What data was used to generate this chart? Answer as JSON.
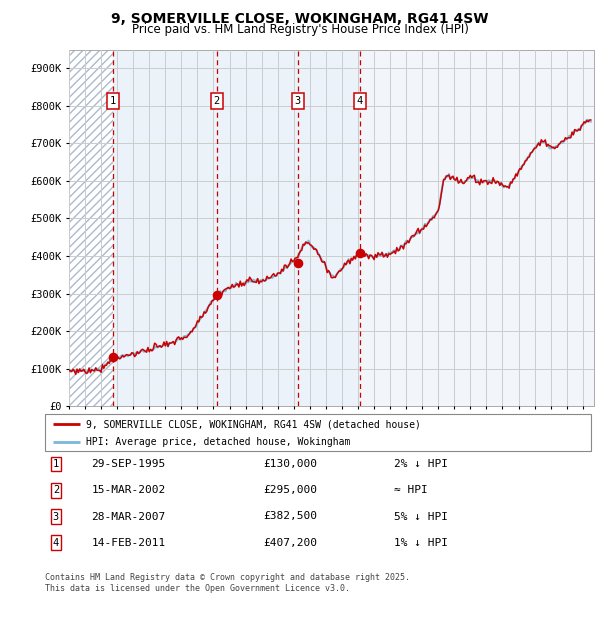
{
  "title": "9, SOMERVILLE CLOSE, WOKINGHAM, RG41 4SW",
  "subtitle": "Price paid vs. HM Land Registry's House Price Index (HPI)",
  "ylabel_ticks": [
    "£0",
    "£100K",
    "£200K",
    "£300K",
    "£400K",
    "£500K",
    "£600K",
    "£700K",
    "£800K",
    "£900K"
  ],
  "ytick_values": [
    0,
    100000,
    200000,
    300000,
    400000,
    500000,
    600000,
    700000,
    800000,
    900000
  ],
  "ylim": [
    0,
    950000
  ],
  "xlim_start": 1993.0,
  "xlim_end": 2025.7,
  "sale_dates": [
    1995.75,
    2002.21,
    2007.24,
    2011.12
  ],
  "sale_prices": [
    130000,
    295000,
    382500,
    407200
  ],
  "sale_labels": [
    "1",
    "2",
    "3",
    "4"
  ],
  "hpi_color": "#7ab8d9",
  "red_line_color": "#cc0000",
  "sale_marker_color": "#cc0000",
  "dashed_line_color": "#cc0000",
  "grid_color": "#cccccc",
  "shade_color": "#dce8f5",
  "legend_line1": "9, SOMERVILLE CLOSE, WOKINGHAM, RG41 4SW (detached house)",
  "legend_line2": "HPI: Average price, detached house, Wokingham",
  "table_rows": [
    [
      "1",
      "29-SEP-1995",
      "£130,000",
      "2% ↓ HPI"
    ],
    [
      "2",
      "15-MAR-2002",
      "£295,000",
      "≈ HPI"
    ],
    [
      "3",
      "28-MAR-2007",
      "£382,500",
      "5% ↓ HPI"
    ],
    [
      "4",
      "14-FEB-2011",
      "£407,200",
      "1% ↓ HPI"
    ]
  ],
  "footnote": "Contains HM Land Registry data © Crown copyright and database right 2025.\nThis data is licensed under the Open Government Licence v3.0.",
  "xtick_years": [
    1993,
    1994,
    1995,
    1996,
    1997,
    1998,
    1999,
    2000,
    2001,
    2002,
    2003,
    2004,
    2005,
    2006,
    2007,
    2008,
    2009,
    2010,
    2011,
    2012,
    2013,
    2014,
    2015,
    2016,
    2017,
    2018,
    2019,
    2020,
    2021,
    2022,
    2023,
    2024,
    2025
  ]
}
